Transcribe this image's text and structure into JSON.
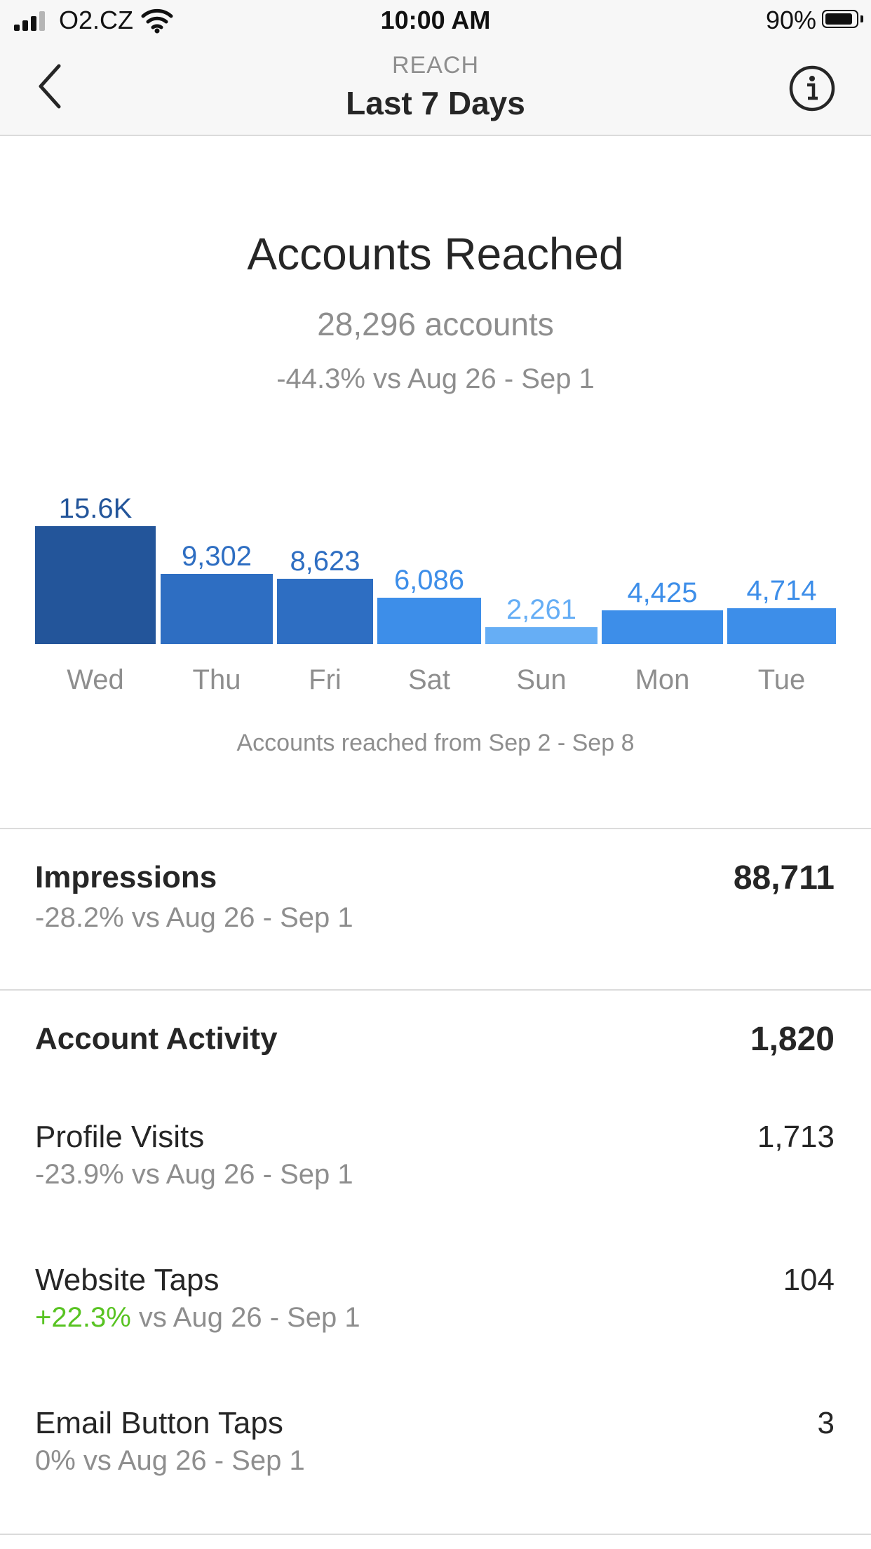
{
  "status_bar": {
    "carrier": "O2.CZ",
    "time": "10:00 AM",
    "battery_percent": "90%",
    "battery_level": 0.9
  },
  "nav": {
    "subtitle": "REACH",
    "title": "Last 7 Days",
    "back_icon": "chevron-left-icon",
    "info_icon": "info-icon"
  },
  "header": {
    "title": "Accounts Reached",
    "count": "28,296 accounts",
    "compare": "-44.3% vs Aug 26 - Sep 1"
  },
  "chart_data": {
    "type": "bar",
    "categories": [
      "Wed",
      "Thu",
      "Fri",
      "Sat",
      "Sun",
      "Mon",
      "Tue"
    ],
    "values": [
      15600,
      9302,
      8623,
      6086,
      2261,
      4425,
      4714
    ],
    "labels": [
      "15.6K",
      "9,302",
      "8,623",
      "6,086",
      "2,261",
      "4,425",
      "4,714"
    ],
    "colors": [
      "#23559a",
      "#2e6ec2",
      "#2e6ec2",
      "#3d8ee9",
      "#66aef5",
      "#3d8ee9",
      "#3d8ee9"
    ],
    "label_colors": [
      "#23559a",
      "#2e6ec2",
      "#2e6ec2",
      "#3d8ee9",
      "#66aef5",
      "#3d8ee9",
      "#3d8ee9"
    ],
    "caption": "Accounts reached from Sep 2 - Sep 8"
  },
  "impressions": {
    "label": "Impressions",
    "value": "88,711",
    "compare": "-28.2% vs Aug 26 - Sep 1"
  },
  "account_activity": {
    "label": "Account Activity",
    "value": "1,820",
    "rows": [
      {
        "label": "Profile Visits",
        "value": "1,713",
        "compare": "-23.9% vs Aug 26 - Sep 1"
      },
      {
        "label": "Website Taps",
        "value": "104",
        "change": "+22.3%",
        "compare_rest": " vs Aug 26 - Sep 1"
      },
      {
        "label": "Email Button Taps",
        "value": "3",
        "compare": "0% vs Aug 26 - Sep 1"
      }
    ]
  },
  "colors": {
    "positive": "#58c322",
    "muted": "#8e8e8e",
    "divider": "#dbdbdb"
  }
}
